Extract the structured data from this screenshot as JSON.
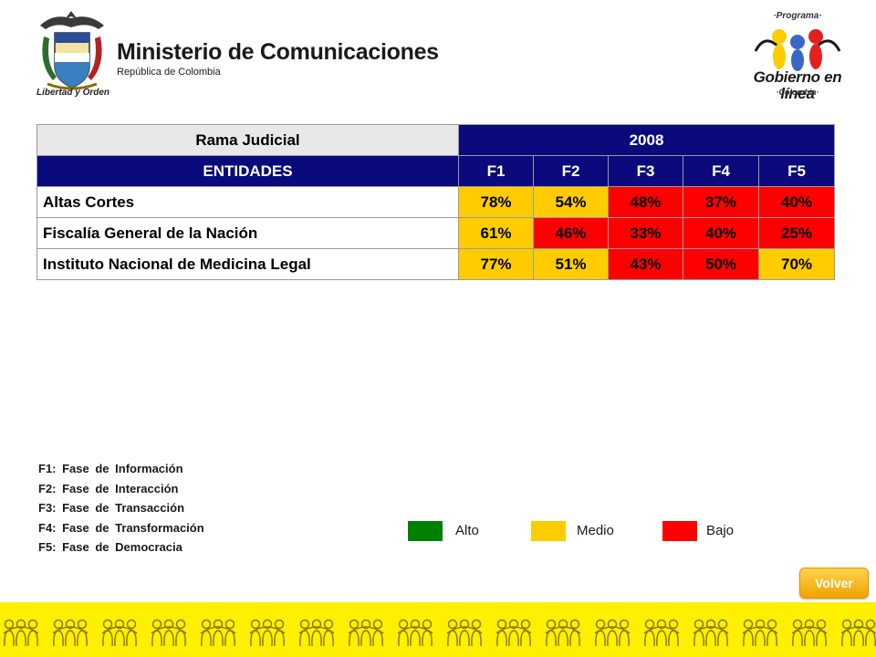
{
  "header": {
    "ministry_name": "Ministerio de Comunicaciones",
    "ministry_country": "República de Colombia",
    "motto": "Libertad y Orden",
    "program_top": "·Programa·",
    "program_name": "Gobierno en línea",
    "program_country": "·Colombia·"
  },
  "table": {
    "title": "Rama Judicial",
    "year": "2008",
    "columns": [
      "ENTIDADES",
      "F1",
      "F2",
      "F3",
      "F4",
      "F5"
    ],
    "rows": [
      {
        "name": "Altas Cortes",
        "values": [
          "78%",
          "54%",
          "48%",
          "37%",
          "40%"
        ],
        "levels": [
          "medio",
          "medio",
          "bajo",
          "bajo",
          "bajo"
        ]
      },
      {
        "name": "Fiscalía General de la Nación",
        "values": [
          "61%",
          "46%",
          "33%",
          "40%",
          "25%"
        ],
        "levels": [
          "medio",
          "bajo",
          "bajo",
          "bajo",
          "bajo"
        ]
      },
      {
        "name": "Instituto Nacional de Medicina Legal",
        "values": [
          "77%",
          "51%",
          "43%",
          "50%",
          "70%"
        ],
        "levels": [
          "medio",
          "medio",
          "bajo",
          "bajo",
          "medio"
        ]
      }
    ]
  },
  "phases": [
    "F1: Fase de Información",
    "F2: Fase de Interacción",
    "F3: Fase de Transacción",
    "F4: Fase de Transformación",
    "F5: Fase de Democracia"
  ],
  "legend": [
    {
      "label": "Alto",
      "color": "#008000"
    },
    {
      "label": "Medio",
      "color": "#ffcc00"
    },
    {
      "label": "Bajo",
      "color": "#ff0000"
    }
  ],
  "colors": {
    "header_blue": "#0a0a7d",
    "medio": "#ffcc00",
    "bajo": "#ff0000",
    "alto": "#008000",
    "footer": "#ffef00"
  },
  "buttons": {
    "volver": "Volver"
  }
}
